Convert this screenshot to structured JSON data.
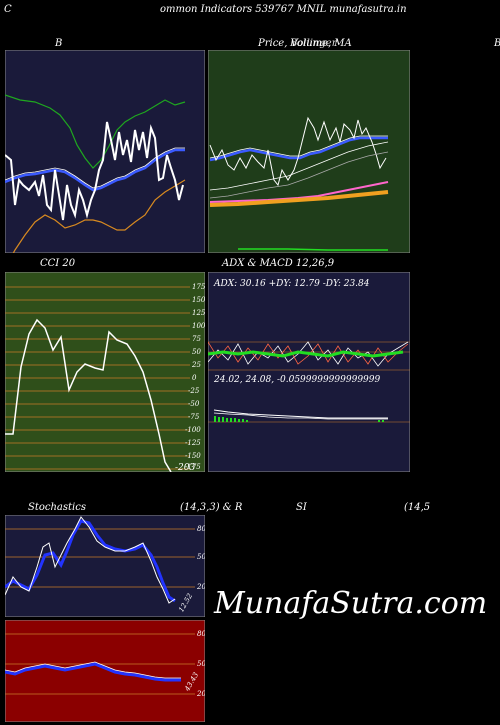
{
  "header": {
    "left_letter": "C",
    "title": "ommon  Indicators 539767 MNIL  munafasutra.in",
    "panel1_label": "B",
    "panel2_label": "Price,  Volume,  MA",
    "panel2_overlay": "Bollinger",
    "right_edge_letter": "B"
  },
  "cci": {
    "title": "CCI 20",
    "ticks": [
      "175",
      "150",
      "125",
      "100",
      "75",
      "50",
      "25",
      "0",
      "-25",
      "-50",
      "-75",
      "-100",
      "-125",
      "-150",
      "-175"
    ],
    "value_label": "-203"
  },
  "adx_macd": {
    "title": "ADX  & MACD 12,26,9",
    "adx_line": "ADX: 30.16  +DY: 12.79 -DY: 23.84",
    "macd_line": "24.02,  24.08,  -0.0599999999999999"
  },
  "stochastics": {
    "title_left": "Stochastics",
    "title_mid": "(14,3,3) & R",
    "title_rsi": "SI",
    "title_right": "(14,5",
    "ticks": [
      "80",
      "50",
      "20"
    ],
    "value_label": "12.52"
  },
  "rsi": {
    "ticks": [
      "80",
      "50",
      "20"
    ],
    "value_label": "43.43"
  },
  "watermark": "MunafaSutra.com",
  "colors": {
    "panel_navy": "#1a1a3a",
    "panel_green": "#1f3d1a",
    "cci_green": "#2f4f1a",
    "rsi_red": "#8b0000",
    "grid_orange": "#c87a28"
  }
}
